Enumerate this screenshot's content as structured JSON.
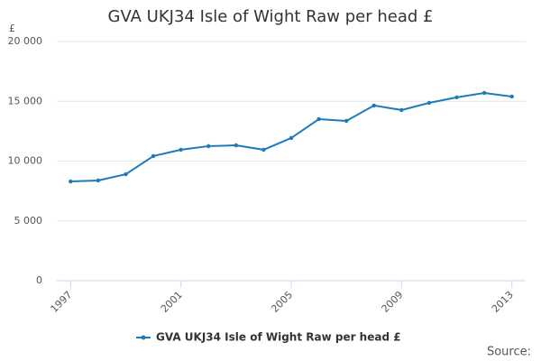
{
  "chart_data": {
    "type": "line",
    "title": "GVA UKJ34 Isle of Wight Raw per head £",
    "y_label": "£",
    "source": "Source:",
    "x": [
      1997,
      1998,
      1999,
      2000,
      2001,
      2002,
      2003,
      2004,
      2005,
      2006,
      2007,
      2008,
      2009,
      2010,
      2011,
      2012,
      2013
    ],
    "series": [
      {
        "name": "GVA UKJ34 Isle of Wight Raw per head £",
        "color": "#1f7ab8",
        "values": [
          8300,
          8380,
          8900,
          10420,
          10950,
          11250,
          11320,
          10950,
          11930,
          13510,
          13360,
          14650,
          14270,
          14870,
          15330,
          15700,
          15400
        ]
      }
    ],
    "xlim": [
      1996.5,
      2013.5
    ],
    "xticks": [
      1997,
      2001,
      2005,
      2009,
      2013
    ],
    "ylim": [
      0,
      20000
    ],
    "yticks": [
      0,
      {
        "value": 5000,
        "label": "5 000"
      },
      {
        "value": 10000,
        "label": "10 000"
      },
      {
        "value": 15000,
        "label": "15 000"
      },
      {
        "value": 20000,
        "label": "20 000"
      }
    ],
    "grid": true
  }
}
